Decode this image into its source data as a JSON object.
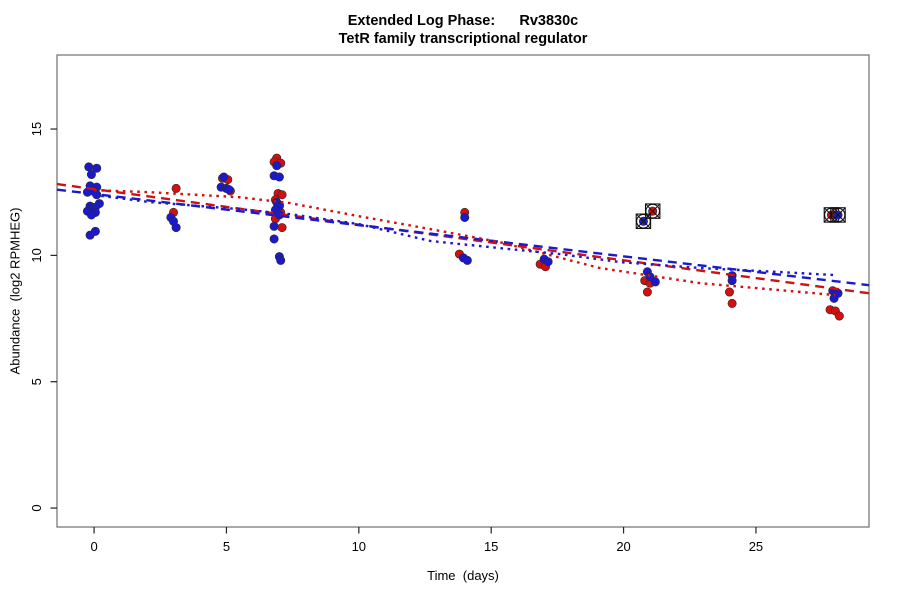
{
  "title": {
    "line1": "Extended Log Phase:      Rv3830c",
    "line2": "TetR family transcriptional regulator"
  },
  "chart_data": {
    "type": "scatter",
    "title": "Extended Log Phase: Rv3830c - TetR family transcriptional regulator",
    "xlabel": "Time  (days)",
    "ylabel": "Abundance  (log2 RPMHEG)",
    "xlim": [
      -1.4,
      29.27
    ],
    "ylim": [
      -0.75,
      17.93
    ],
    "x_ticks": [
      0,
      5,
      10,
      15,
      20,
      25
    ],
    "y_ticks": [
      0,
      5,
      10,
      15
    ],
    "grid": false,
    "legend": "none",
    "colors": {
      "red": "#d40f0f",
      "blue": "#1a1acc",
      "flag_outline": "#111111",
      "box": "#6e6e6e"
    },
    "series": [
      {
        "name": "red-replicate",
        "type": "points",
        "color": "#d40f0f",
        "points": [
          [
            3.1,
            12.65
          ],
          [
            3.0,
            11.7
          ],
          [
            4.85,
            13.05
          ],
          [
            5.05,
            13.0
          ],
          [
            5.15,
            12.55
          ],
          [
            6.9,
            13.85
          ],
          [
            6.8,
            13.7
          ],
          [
            7.05,
            13.65
          ],
          [
            6.95,
            12.45
          ],
          [
            7.1,
            12.4
          ],
          [
            6.85,
            12.2
          ],
          [
            7.0,
            12.0
          ],
          [
            6.9,
            11.85
          ],
          [
            7.05,
            11.7
          ],
          [
            6.85,
            11.45
          ],
          [
            7.1,
            11.1
          ],
          [
            14.0,
            11.7
          ],
          [
            13.8,
            10.05
          ],
          [
            16.85,
            9.65
          ],
          [
            17.05,
            9.55
          ],
          [
            20.8,
            9.0
          ],
          [
            21.0,
            8.9
          ],
          [
            20.9,
            8.55
          ],
          [
            24.0,
            8.55
          ],
          [
            24.1,
            8.1
          ],
          [
            27.8,
            7.85
          ],
          [
            28.0,
            7.8
          ],
          [
            28.15,
            7.6
          ]
        ]
      },
      {
        "name": "blue-replicate",
        "type": "points",
        "color": "#1a1acc",
        "points": [
          [
            -0.2,
            13.5
          ],
          [
            0.1,
            13.45
          ],
          [
            -0.1,
            13.2
          ],
          [
            -0.15,
            12.75
          ],
          [
            0.1,
            12.7
          ],
          [
            -0.05,
            12.55
          ],
          [
            -0.25,
            12.5
          ],
          [
            0.1,
            12.4
          ],
          [
            0.2,
            12.05
          ],
          [
            -0.15,
            11.95
          ],
          [
            0.05,
            11.9
          ],
          [
            -0.1,
            11.8
          ],
          [
            -0.25,
            11.75
          ],
          [
            0.05,
            11.7
          ],
          [
            -0.1,
            11.6
          ],
          [
            0.05,
            10.95
          ],
          [
            -0.15,
            10.8
          ],
          [
            2.9,
            11.5
          ],
          [
            3.0,
            11.35
          ],
          [
            3.1,
            11.1
          ],
          [
            4.9,
            13.1
          ],
          [
            4.8,
            12.7
          ],
          [
            5.0,
            12.65
          ],
          [
            5.1,
            12.6
          ],
          [
            6.9,
            13.55
          ],
          [
            6.8,
            13.15
          ],
          [
            7.0,
            13.1
          ],
          [
            6.9,
            12.1
          ],
          [
            7.0,
            11.95
          ],
          [
            6.85,
            11.8
          ],
          [
            7.0,
            11.6
          ],
          [
            6.8,
            11.15
          ],
          [
            6.8,
            10.65
          ],
          [
            7.0,
            9.95
          ],
          [
            7.05,
            9.8
          ],
          [
            14.0,
            11.5
          ],
          [
            13.95,
            9.9
          ],
          [
            14.1,
            9.8
          ],
          [
            17.0,
            9.85
          ],
          [
            17.15,
            9.75
          ],
          [
            20.9,
            9.35
          ],
          [
            21.0,
            9.15
          ],
          [
            21.2,
            8.95
          ],
          [
            24.1,
            9.2
          ],
          [
            24.1,
            9.0
          ],
          [
            27.9,
            8.6
          ],
          [
            28.1,
            8.5
          ],
          [
            27.95,
            8.3
          ]
        ]
      },
      {
        "name": "flagged-outliers",
        "type": "points",
        "marker": "circle-square-x",
        "points": [
          [
            21.1,
            11.75,
            "red"
          ],
          [
            20.75,
            11.35,
            "blue"
          ],
          [
            27.85,
            11.6,
            "red"
          ],
          [
            28.1,
            11.6,
            "blue"
          ]
        ]
      }
    ],
    "trend_lines": [
      {
        "name": "red-linear-fit",
        "color": "#d40f0f",
        "style": "dashed",
        "points": [
          [
            -1.4,
            12.82
          ],
          [
            29.27,
            8.5
          ]
        ]
      },
      {
        "name": "blue-linear-fit",
        "color": "#1a1acc",
        "style": "dashed",
        "points": [
          [
            -1.4,
            12.6
          ],
          [
            29.27,
            8.82
          ]
        ]
      },
      {
        "name": "red-loess-fit",
        "color": "#d40f0f",
        "style": "dotted",
        "points": [
          [
            0,
            12.58
          ],
          [
            2.1,
            12.5
          ],
          [
            5.5,
            12.3
          ],
          [
            7.4,
            12.07
          ],
          [
            10,
            11.55
          ],
          [
            12.7,
            11.04
          ],
          [
            15.3,
            10.53
          ],
          [
            19.1,
            9.5
          ],
          [
            22.9,
            8.9
          ],
          [
            26.7,
            8.55
          ],
          [
            28,
            8.43
          ]
        ]
      },
      {
        "name": "blue-loess-fit",
        "color": "#1a1acc",
        "style": "dotted",
        "points": [
          [
            0,
            12.39
          ],
          [
            2.1,
            12.11
          ],
          [
            5.5,
            11.83
          ],
          [
            7.4,
            11.63
          ],
          [
            10,
            11.24
          ],
          [
            12.7,
            10.57
          ],
          [
            15.3,
            10.29
          ],
          [
            17.6,
            10.05
          ],
          [
            19.9,
            9.73
          ],
          [
            22.9,
            9.5
          ],
          [
            25.9,
            9.34
          ],
          [
            28,
            9.22
          ]
        ]
      }
    ]
  }
}
